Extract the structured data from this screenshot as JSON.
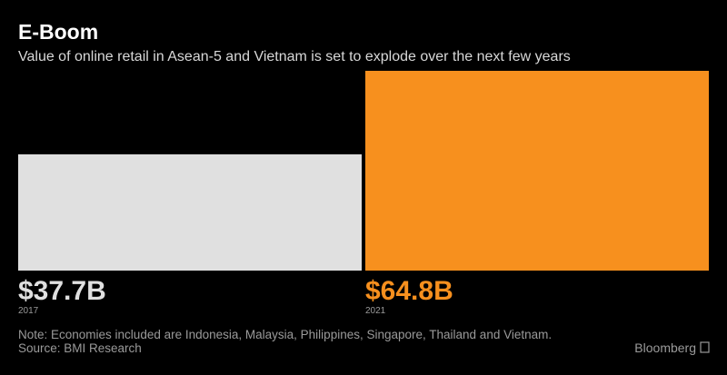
{
  "chart_data": {
    "type": "bar",
    "title": "E-Boom",
    "subtitle": "Value of online retail in Asean-5 and Vietnam is set to explode over the next few years",
    "categories": [
      "2017",
      "2021"
    ],
    "values": [
      37.7,
      64.8
    ],
    "value_labels": [
      "$37.7B",
      "$64.8B"
    ],
    "colors": [
      "#e0e0e0",
      "#f7901e"
    ],
    "note": "Note: Economies included are Indonesia, Malaysia, Philippines, Singapore, Thailand and Vietnam.",
    "source": "Source: BMI Research",
    "brand": "Bloomberg"
  }
}
